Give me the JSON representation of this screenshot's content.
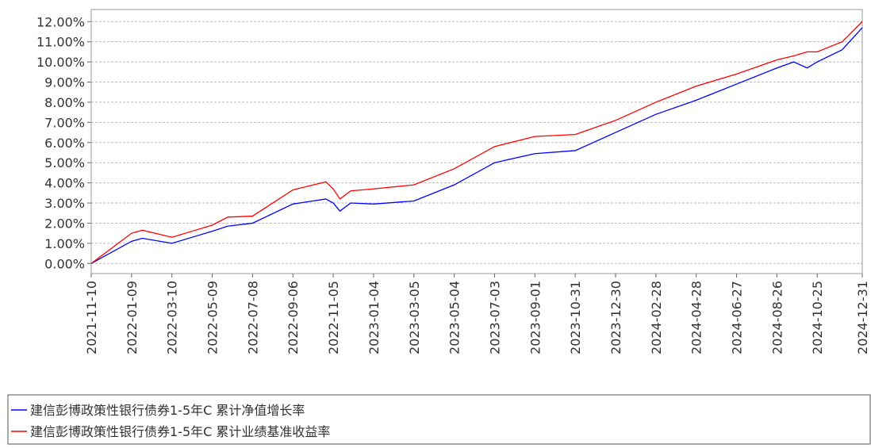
{
  "chart_data": {
    "type": "line",
    "x": [
      "2021-11-10",
      "2022-01-09",
      "2022-01-25",
      "2022-03-10",
      "2022-05-09",
      "2022-06-01",
      "2022-07-08",
      "2022-09-06",
      "2022-10-25",
      "2022-11-05",
      "2022-11-15",
      "2022-12-01",
      "2023-01-04",
      "2023-03-05",
      "2023-05-04",
      "2023-07-03",
      "2023-09-01",
      "2023-10-31",
      "2023-12-30",
      "2024-02-28",
      "2024-04-28",
      "2024-06-27",
      "2024-08-26",
      "2024-09-20",
      "2024-10-10",
      "2024-10-25",
      "2024-12-01",
      "2024-12-31"
    ],
    "series": [
      {
        "name": "建信彭博政策性银行债券1-5年C 累计净值增长率",
        "color": "#0000ff",
        "values": [
          0,
          1.1,
          1.25,
          1.0,
          1.6,
          1.85,
          2.0,
          2.95,
          3.2,
          3.0,
          2.6,
          3.0,
          2.95,
          3.1,
          3.9,
          5.0,
          5.45,
          5.6,
          6.5,
          7.4,
          8.1,
          8.9,
          9.7,
          10.0,
          9.7,
          10.0,
          10.6,
          11.7
        ]
      },
      {
        "name": "建信彭博政策性银行债券1-5年C 累计业绩基准收益率",
        "color": "#ff0000",
        "values": [
          0,
          1.5,
          1.65,
          1.3,
          1.9,
          2.3,
          2.35,
          3.65,
          4.05,
          3.7,
          3.2,
          3.6,
          3.7,
          3.9,
          4.7,
          5.8,
          6.3,
          6.4,
          7.1,
          8.0,
          8.8,
          9.4,
          10.1,
          10.3,
          10.5,
          10.5,
          11.0,
          12.0
        ]
      }
    ],
    "xlim": [
      "2021-11-10",
      "2024-12-31"
    ],
    "xticks": [
      "2021-11-10",
      "2022-01-09",
      "2022-03-10",
      "2022-05-09",
      "2022-07-08",
      "2022-09-06",
      "2022-11-05",
      "2023-01-04",
      "2023-03-05",
      "2023-05-04",
      "2023-07-03",
      "2023-09-01",
      "2023-10-31",
      "2023-12-30",
      "2024-02-28",
      "2024-04-28",
      "2024-06-27",
      "2024-08-26",
      "2024-10-25",
      "2024-12-31"
    ],
    "ylim": [
      -0.5,
      12.6
    ],
    "yticks": [
      {
        "value": 0,
        "label": "0.00%"
      },
      {
        "value": 1,
        "label": "1.00%"
      },
      {
        "value": 2,
        "label": "2.00%"
      },
      {
        "value": 3,
        "label": "3.00%"
      },
      {
        "value": 4,
        "label": "4.00%"
      },
      {
        "value": 5,
        "label": "5.00%"
      },
      {
        "value": 6,
        "label": "6.00%"
      },
      {
        "value": 7,
        "label": "7.00%"
      },
      {
        "value": 8,
        "label": "8.00%"
      },
      {
        "value": 9,
        "label": "9.00%"
      },
      {
        "value": 10,
        "label": "10.00%"
      },
      {
        "value": 11,
        "label": "11.00%"
      },
      {
        "value": 12,
        "label": "12.00%"
      }
    ],
    "grid": true
  }
}
